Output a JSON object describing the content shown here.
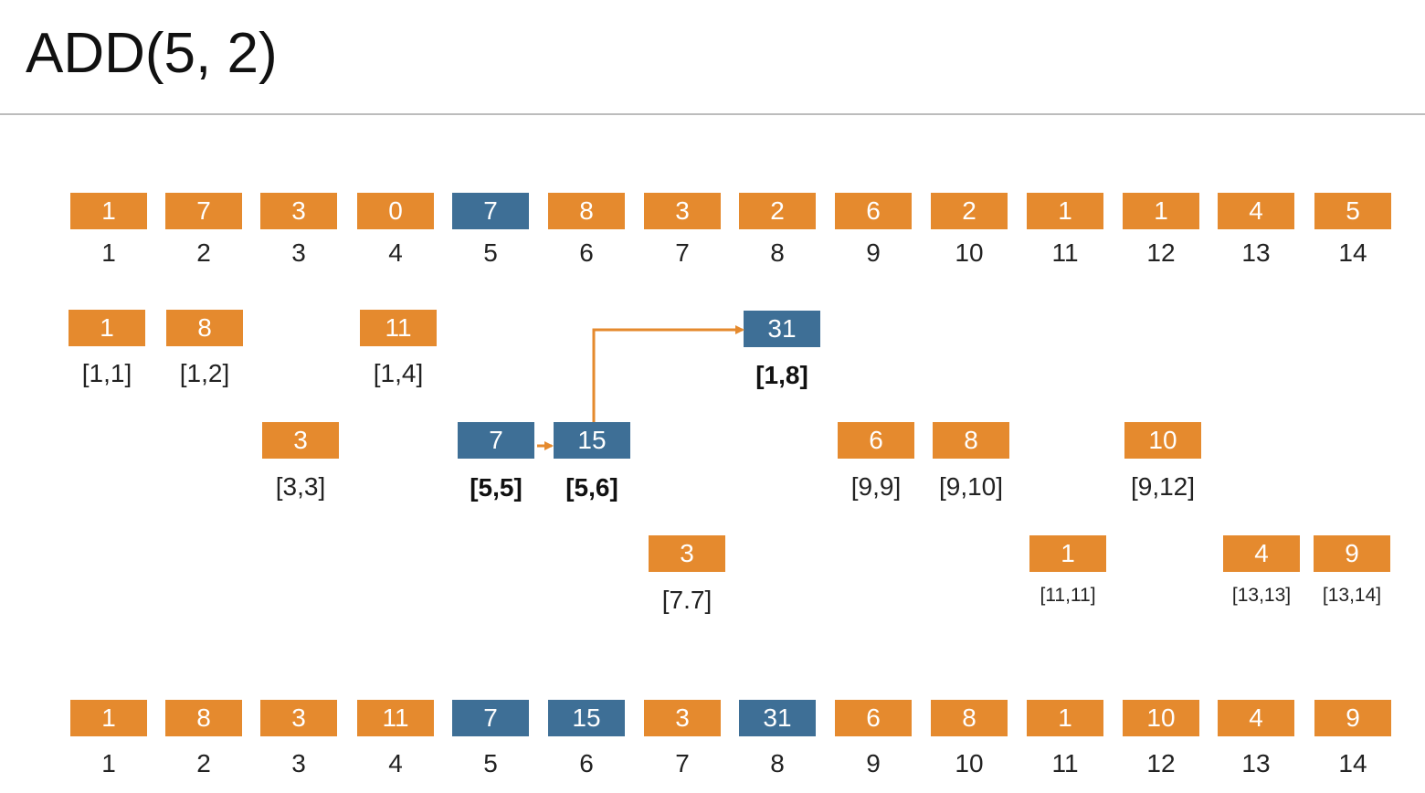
{
  "title": "ADD(5, 2)",
  "colors": {
    "orange": "#e58a2e",
    "blue": "#3e6f96"
  },
  "top_row": {
    "values": [
      "1",
      "7",
      "3",
      "0",
      "7",
      "8",
      "3",
      "2",
      "6",
      "2",
      "1",
      "1",
      "4",
      "5"
    ],
    "indices": [
      "1",
      "2",
      "3",
      "4",
      "5",
      "6",
      "7",
      "8",
      "9",
      "10",
      "11",
      "12",
      "13",
      "14"
    ],
    "highlight": [
      5
    ]
  },
  "tree_nodes": [
    {
      "value": "1",
      "range": "[1,1]",
      "highlight": false
    },
    {
      "value": "8",
      "range": "[1,2]",
      "highlight": false
    },
    {
      "value": "11",
      "range": "[1,4]",
      "highlight": false
    },
    {
      "value": "31",
      "range": "[1,8]",
      "highlight": true
    },
    {
      "value": "3",
      "range": "[3,3]",
      "highlight": false
    },
    {
      "value": "7",
      "range": "[5,5]",
      "highlight": true
    },
    {
      "value": "15",
      "range": "[5,6]",
      "highlight": true
    },
    {
      "value": "6",
      "range": "[9,9]",
      "highlight": false
    },
    {
      "value": "8",
      "range": "[9,10]",
      "highlight": false
    },
    {
      "value": "10",
      "range": "[9,12]",
      "highlight": false
    },
    {
      "value": "3",
      "range": "[7.7]",
      "highlight": false
    },
    {
      "value": "1",
      "range": "[11,11]",
      "highlight": false
    },
    {
      "value": "4",
      "range": "[13,13]",
      "highlight": false
    },
    {
      "value": "9",
      "range": "[13,14]",
      "highlight": false
    }
  ],
  "bottom_row": {
    "values": [
      "1",
      "8",
      "3",
      "11",
      "7",
      "15",
      "3",
      "31",
      "6",
      "8",
      "1",
      "10",
      "4",
      "9"
    ],
    "indices": [
      "1",
      "2",
      "3",
      "4",
      "5",
      "6",
      "7",
      "8",
      "9",
      "10",
      "11",
      "12",
      "13",
      "14"
    ],
    "highlight": [
      5,
      6,
      8
    ]
  }
}
